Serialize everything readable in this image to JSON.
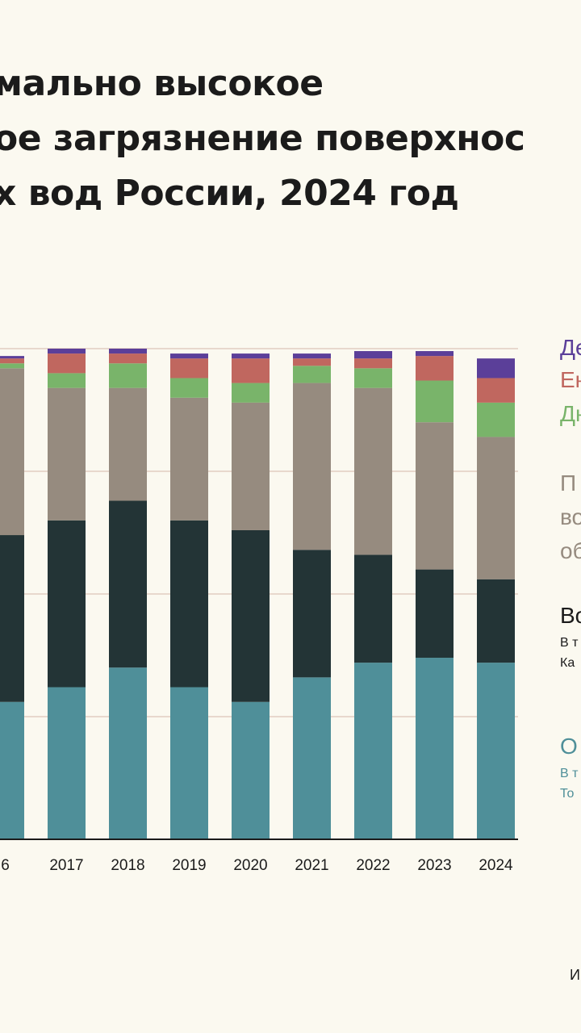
{
  "title_lines": [
    "мально высокое",
    "ое загрязнение поверхнос",
    "х вод России, 2024 год"
  ],
  "legend": {
    "l1": "Де",
    "l2": "Ен",
    "l3": "Дн",
    "l4a": "П",
    "l4b": "во",
    "l4c": "об",
    "l5a": "Во",
    "l5b": "В т",
    "l5c": "Ка",
    "l6a": "О",
    "l6b": "В т",
    "l6c": "То"
  },
  "source": "И",
  "colors": {
    "teal": "#4f8f99",
    "dark": "#233436",
    "gray": "#968b7f",
    "green": "#79b46a",
    "red": "#c0675f",
    "purple": "#5b3f99",
    "background": "#fbf9f0",
    "gridline": "#d6b6aa"
  },
  "chart_data": {
    "type": "bar",
    "stacked": true,
    "categories": [
      "6",
      "2017",
      "2018",
      "2019",
      "2020",
      "2021",
      "2022",
      "2023",
      "2024"
    ],
    "ylim": [
      0,
      100
    ],
    "grid": true,
    "series": [
      {
        "color": "#4f8f99",
        "values": [
          28,
          31,
          35,
          31,
          28,
          33,
          36,
          37,
          36
        ]
      },
      {
        "color": "#233436",
        "values": [
          34,
          34,
          34,
          34,
          35,
          26,
          22,
          18,
          17
        ]
      },
      {
        "color": "#968b7f",
        "values": [
          34,
          27,
          23,
          25,
          26,
          34,
          34,
          30,
          29
        ]
      },
      {
        "color": "#79b46a",
        "values": [
          1,
          3,
          5,
          4,
          4,
          3.5,
          4,
          8.5,
          7
        ]
      },
      {
        "color": "#c0675f",
        "values": [
          1,
          4,
          2,
          4,
          5,
          1.5,
          2,
          5,
          5
        ]
      },
      {
        "color": "#5b3f99",
        "values": [
          0.5,
          1,
          1,
          1,
          1,
          1,
          1.5,
          1,
          4
        ]
      }
    ]
  }
}
